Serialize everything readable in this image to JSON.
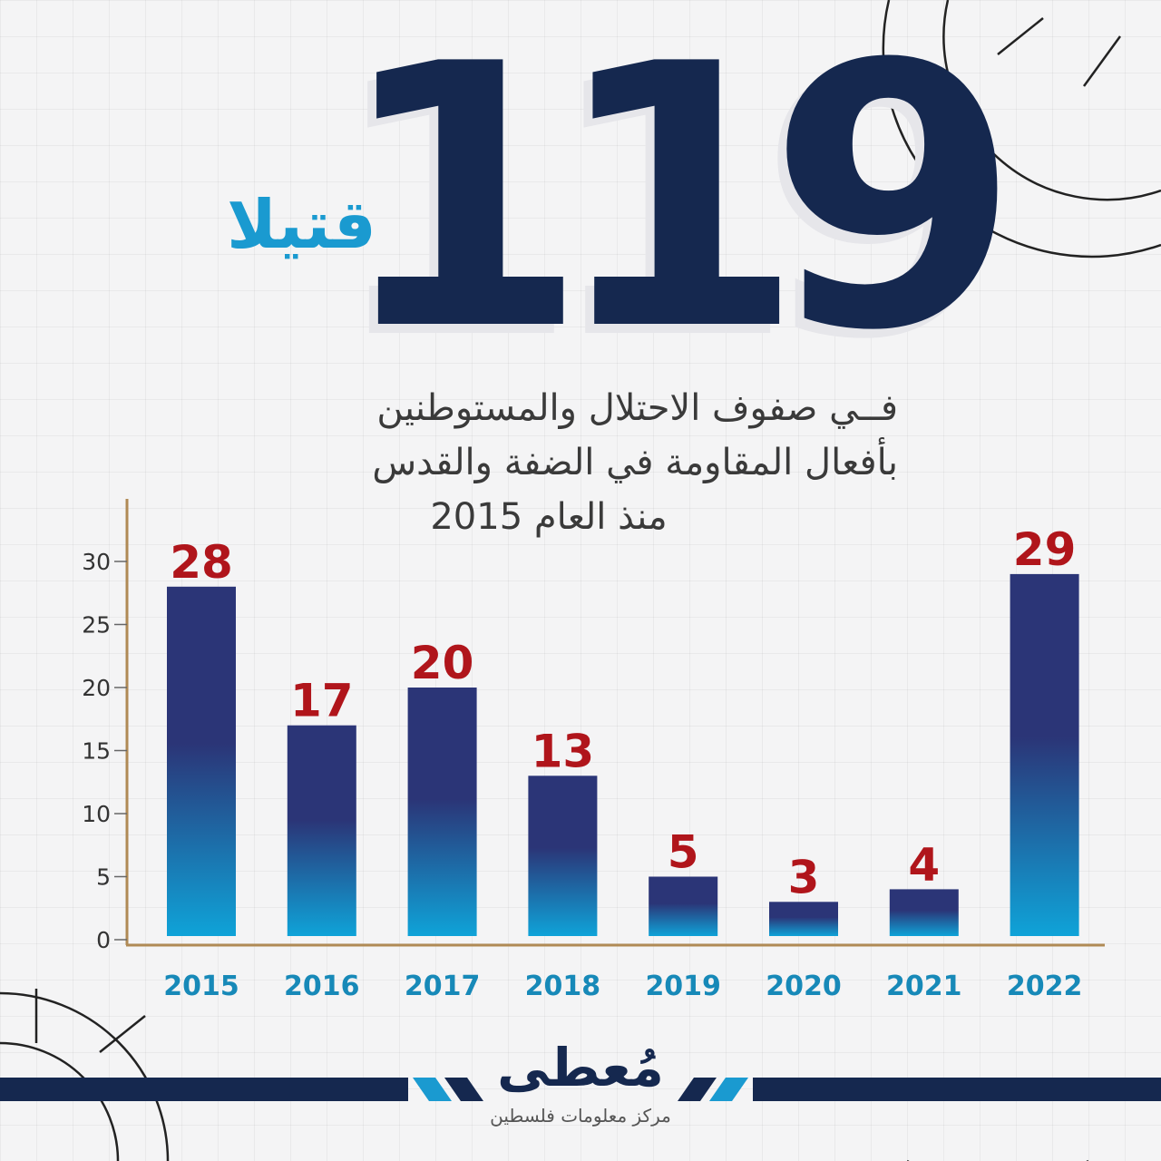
{
  "headline": {
    "number": "119",
    "unit": "قتيلا"
  },
  "subtitle": {
    "line1": "فــي صفوف الاحتلال والمستوطنين",
    "line2": "بأفعال المقاومة في الضفة والقدس",
    "line3": "منذ العام 2015"
  },
  "brand": {
    "name": "مُعطى",
    "tagline": "مركز معلومات فلسطين"
  },
  "colors": {
    "bar_top": "#2b3577",
    "bar_bottom": "#0fa3d8",
    "value_label": "#b0151b",
    "year_label": "#1789b8",
    "axis": "#b08a55",
    "navy": "#15284f"
  },
  "chart_data": {
    "type": "bar",
    "categories": [
      "2015",
      "2016",
      "2017",
      "2018",
      "2019",
      "2020",
      "2021",
      "2022"
    ],
    "values": [
      28,
      17,
      20,
      13,
      5,
      3,
      4,
      29
    ],
    "data_labels": [
      "28",
      "17",
      "20",
      "13",
      "5",
      "3",
      "4",
      "29"
    ],
    "yticks": [
      0,
      5,
      10,
      15,
      20,
      25,
      30
    ],
    "ylim": [
      0,
      30
    ],
    "grid": false,
    "legend": "none"
  }
}
